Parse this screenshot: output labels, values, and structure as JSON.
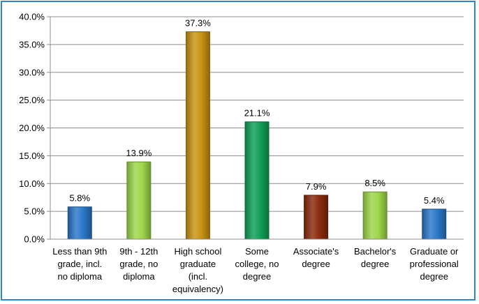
{
  "chart_data": {
    "type": "bar",
    "title": "",
    "xlabel": "",
    "ylabel": "",
    "ylim": [
      0,
      40
    ],
    "ytick_step": 5,
    "ytick_labels": [
      "0.0%",
      "5.0%",
      "10.0%",
      "15.0%",
      "20.0%",
      "25.0%",
      "30.0%",
      "35.0%",
      "40.0%"
    ],
    "grid": true,
    "legend": "none",
    "categories": [
      [
        "Less than 9th",
        "grade, incl.",
        "no diploma"
      ],
      [
        "9th - 12th",
        "grade, no",
        "diploma"
      ],
      [
        "High school",
        "graduate",
        "(incl.",
        "equivalency)"
      ],
      [
        "Some",
        "college, no",
        "degree"
      ],
      [
        "Associate's",
        "degree"
      ],
      [
        "Bachelor's",
        "degree"
      ],
      [
        "Graduate or",
        "professional",
        "degree"
      ]
    ],
    "values": [
      5.8,
      13.9,
      37.3,
      21.1,
      7.9,
      8.5,
      5.4
    ],
    "data_labels": [
      "5.8%",
      "13.9%",
      "37.3%",
      "21.1%",
      "7.9%",
      "8.5%",
      "5.4%"
    ],
    "colors": [
      "#2a78c9",
      "#9fd64a",
      "#c99212",
      "#0fa055",
      "#8a2b0c",
      "#9fd64a",
      "#2a78c9"
    ]
  }
}
